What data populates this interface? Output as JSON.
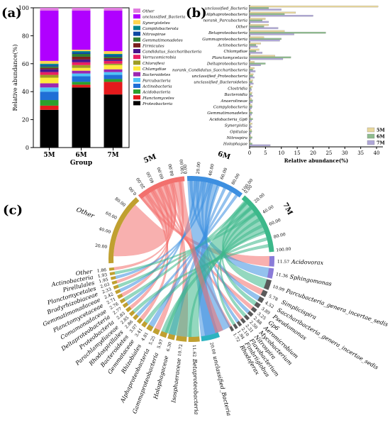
{
  "panel_labels": {
    "a": "(a)",
    "b": "(b)",
    "c": "(c)"
  },
  "chart_data": [
    {
      "panel": "a",
      "type": "bar",
      "stacked": true,
      "xlabel": "Group",
      "ylabel": "Relative abundance(%)",
      "ylim": [
        0,
        100
      ],
      "yticks": [
        "0",
        "20",
        "40",
        "60",
        "80",
        "100"
      ],
      "categories": [
        "5M",
        "6M",
        "7M"
      ],
      "legend_position": "right",
      "series": [
        {
          "name": "Proteobacteria",
          "color": "#000000",
          "values": [
            27,
            43,
            38
          ]
        },
        {
          "name": "Planctomycetes",
          "color": "#e41a1c",
          "values": [
            3,
            2,
            9
          ]
        },
        {
          "name": "Acidobacteria",
          "color": "#2ca02c",
          "values": [
            4,
            2,
            2
          ]
        },
        {
          "name": "Actinobacteria",
          "color": "#1f6fd6",
          "values": [
            6,
            4,
            3
          ]
        },
        {
          "name": "Parcubacteria",
          "color": "#4fc3f7",
          "values": [
            3,
            2,
            2
          ]
        },
        {
          "name": "Bacteroidetes",
          "color": "#9c27b0",
          "values": [
            3,
            2,
            2
          ]
        },
        {
          "name": "Chlamydiae",
          "color": "#ffeb3b",
          "values": [
            4,
            2,
            3
          ]
        },
        {
          "name": "Chloroflexi",
          "color": "#9e9d24",
          "values": [
            2,
            2,
            1
          ]
        },
        {
          "name": "Verrucomicrobia",
          "color": "#e91e63",
          "values": [
            2,
            2,
            2
          ]
        },
        {
          "name": "Candidatus_Saccharibacteria",
          "color": "#4a148c",
          "values": [
            2,
            2,
            1
          ]
        },
        {
          "name": "Firmicutes",
          "color": "#7b1f1f",
          "values": [
            1,
            2,
            1
          ]
        },
        {
          "name": "Gemmatimonadetes",
          "color": "#2e7d32",
          "values": [
            1,
            2,
            1
          ]
        },
        {
          "name": "Nitrospirae",
          "color": "#0d47a1",
          "values": [
            1,
            1,
            1
          ]
        },
        {
          "name": "Campilobacterota",
          "color": "#00838f",
          "values": [
            1,
            1,
            1
          ]
        },
        {
          "name": "Synergistetes",
          "color": "#ffd54f",
          "values": [
            2,
            1,
            2
          ]
        },
        {
          "name": "unclassified_Bacteria",
          "color": "#b000ff",
          "values": [
            36,
            28,
            29
          ]
        },
        {
          "name": "Other",
          "color": "#e07be0",
          "values": [
            2,
            2,
            2
          ]
        }
      ]
    },
    {
      "panel": "b",
      "type": "bar",
      "orientation": "horizontal",
      "xlabel": "Relative abundance(%)",
      "xlim": [
        0,
        42
      ],
      "xticks": [
        "0",
        "5",
        "10",
        "15",
        "20",
        "25",
        "30",
        "35",
        "40"
      ],
      "legend_position": "bottom-right",
      "categories": [
        "unclassified_Bacteria",
        "Alphaproteobacteria",
        "norank_Parcubacteria",
        "Other",
        "Betaproteobacteria",
        "Gammaproteobacteria",
        "Actinobacteria",
        "Chlamydiae",
        "Planctomycetacia",
        "Deltaproteobacteria",
        "norank_Candidatus_Saccharibacteria",
        "unclassified_Proteobacteria",
        "unclassified_Bacteroidetes",
        "Clostridia",
        "Bacteroidia",
        "Anaerolineae",
        "Campylobacteria",
        "Gemmatimonadetes",
        "Acidobacteria_Gp6",
        "Synergistia",
        "Opitutae",
        "Nitrospira",
        "Holophagae"
      ],
      "series": [
        {
          "name": "5M",
          "color": "#e8d79c",
          "values": [
            40.5,
            14.5,
            5,
            6,
            11,
            4.5,
            3.5,
            3,
            8,
            1.5,
            1.5,
            1.2,
            1,
            0.9,
            0.8,
            0.6,
            0.7,
            0.5,
            0.4,
            0.8,
            0.6,
            0.4,
            0.3
          ]
        },
        {
          "name": "6M",
          "color": "#8fbc8f",
          "values": [
            6,
            11,
            4,
            4.5,
            24,
            10,
            2,
            2,
            13,
            5,
            1,
            1,
            0.8,
            0.5,
            0.6,
            1,
            0.8,
            0.9,
            1,
            0.3,
            0.7,
            0.8,
            0.8
          ]
        },
        {
          "name": "7M",
          "color": "#b0a8d8",
          "values": [
            10,
            20,
            6,
            9,
            14,
            9.5,
            2.5,
            4,
            10.5,
            3.5,
            1.8,
            1.5,
            1.2,
            0.6,
            1,
            0.9,
            0.6,
            0.6,
            0.6,
            0.7,
            0.5,
            0.5,
            6.5
          ]
        }
      ]
    },
    {
      "panel": "c",
      "type": "chord",
      "group_scale_ticks": [
        "0.00",
        "20.00",
        "40.00",
        "60.00",
        "80.00",
        "100.00"
      ],
      "groups": [
        {
          "name": "5M",
          "color": "#f2706d"
        },
        {
          "name": "6M",
          "color": "#3d8fe0"
        },
        {
          "name": "7M",
          "color": "#3cb88a"
        }
      ],
      "taxa_right": [
        {
          "name": "Acidovorax",
          "value": "11.57",
          "color": "#8a7bd8"
        },
        {
          "name": "Sphingomonas",
          "value": "11.36",
          "color": "#8a7bd8"
        },
        {
          "name": "Parcubacteria_genera_incertae_sedis",
          "value": "10.99",
          "color": "#5a5a5a"
        },
        {
          "name": "Simplicispira",
          "value": "5.78",
          "color": "#5a5a5a"
        },
        {
          "name": "Saccharibacteria_genera_incertae_sedis",
          "value": "4.52",
          "color": "#5a5a5a"
        },
        {
          "name": "Pseudomonas",
          "value": "3.89",
          "color": "#5a5a5a"
        },
        {
          "name": "Gp6",
          "value": "3.25",
          "color": "#5a5a5a"
        },
        {
          "name": "Aeromicrobium",
          "value": "2.88",
          "color": "#5a5a5a"
        },
        {
          "name": "Mycobacterium",
          "value": "2.50",
          "color": "#5a5a5a"
        },
        {
          "name": "Nitrospira",
          "value": "2.31",
          "color": "#5a5a5a"
        },
        {
          "name": "Flavobacterium",
          "value": "2.10",
          "color": "#5a5a5a"
        },
        {
          "name": "Fimbriiglobus",
          "value": "1.94",
          "color": "#5a5a5a"
        },
        {
          "name": "Rhodoferax",
          "value": "1.72",
          "color": "#5a5a5a"
        }
      ],
      "taxa_bottom": [
        {
          "name": "unclassified_Bacteria",
          "value": "20.00",
          "color": "#2bb3c0"
        },
        {
          "name": "Betaproteobacteria",
          "value": "11.62",
          "color": "#c0a030"
        },
        {
          "name": "Isosphaeraceae",
          "value": "10.72",
          "color": "#c0a030"
        },
        {
          "name": "Holophagaceae",
          "value": "6.30",
          "color": "#c0a030"
        },
        {
          "name": "Gammaproteobacteria",
          "value": "5.97",
          "color": "#c0a030"
        },
        {
          "name": "Alphaproteobacteria",
          "value": "5.25",
          "color": "#c0a030"
        },
        {
          "name": "Rhizobiales",
          "value": "4.81",
          "color": "#c0a030"
        },
        {
          "name": "Gemmataceae",
          "value": "3.41",
          "color": "#c0a030"
        },
        {
          "name": "Bacteroidetes",
          "value": "3.07",
          "color": "#c0a030"
        }
      ],
      "taxa_left": [
        {
          "name": "Rhodospirillales",
          "value": "2.86",
          "color": "#c0a030"
        },
        {
          "name": "Parachlamydiaceae",
          "value": "2.85",
          "color": "#c0a030"
        },
        {
          "name": "Proteobacteria",
          "value": "2.83",
          "color": "#c0a030"
        },
        {
          "name": "Deltaproteobacteria",
          "value": "2.77",
          "color": "#c0a030"
        },
        {
          "name": "Comamonadaceae",
          "value": "2.76",
          "color": "#c0a030"
        },
        {
          "name": "Planctomycetaceae",
          "value": "2.71",
          "color": "#c0a030"
        },
        {
          "name": "Gemmatimonadaceae",
          "value": "2.42",
          "color": "#c0a030"
        },
        {
          "name": "Bradyrhizobiaceae",
          "value": "2.33",
          "color": "#c0a030"
        },
        {
          "name": "Planctomycetales",
          "value": "2.03",
          "color": "#c0a030"
        },
        {
          "name": "Pirellulales",
          "value": "1.95",
          "color": "#c0a030"
        },
        {
          "name": "Actinobacteria",
          "value": "1.93",
          "color": "#c0a030"
        },
        {
          "name": "Other",
          "value": "1.86",
          "color": "#c0a030"
        }
      ],
      "other_scale_ticks": [
        "20.00",
        "40.00",
        "60.00",
        "80.00"
      ]
    }
  ]
}
